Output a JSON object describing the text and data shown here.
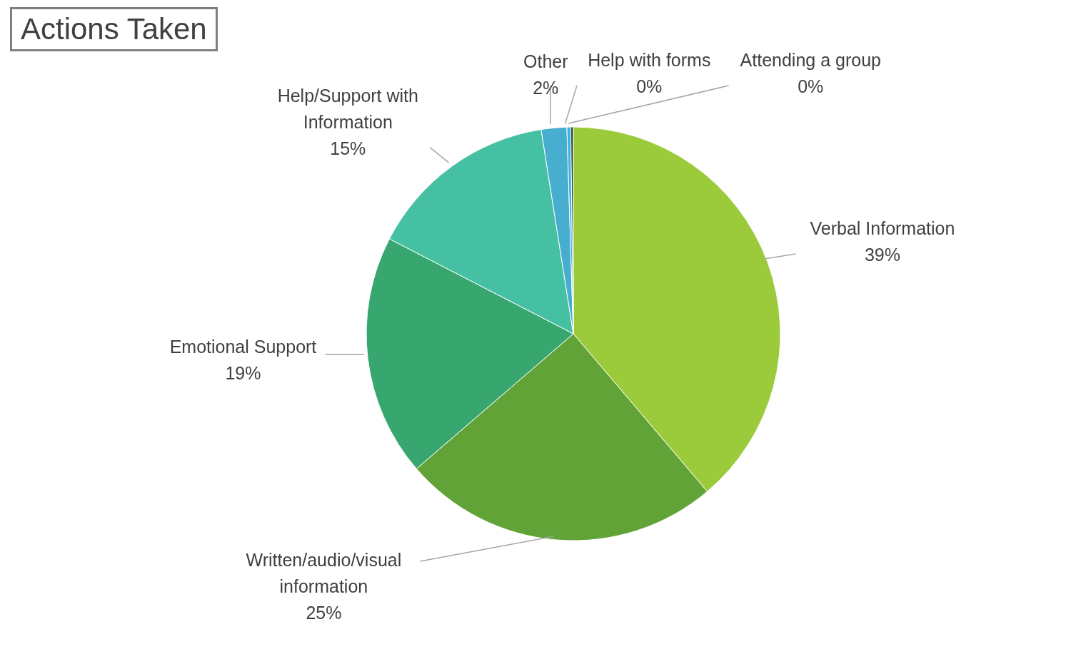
{
  "chart_data": {
    "type": "pie",
    "title": "Actions Taken",
    "categories": [
      "Verbal Information",
      "Written/audio/visual information",
      "Emotional Support",
      "Help/Support with Information",
      "Other",
      "Help with forms",
      "Attending a group"
    ],
    "values": [
      39,
      25,
      19,
      15,
      2,
      0.3,
      0.2
    ],
    "value_labels": [
      "39%",
      "25%",
      "19%",
      "15%",
      "2%",
      "0%",
      "0%"
    ],
    "colors": [
      "#9bcb3b",
      "#62a337",
      "#38a76f",
      "#46c0a3",
      "#47aed0",
      "#3ab4e8",
      "#3b4a26"
    ]
  }
}
